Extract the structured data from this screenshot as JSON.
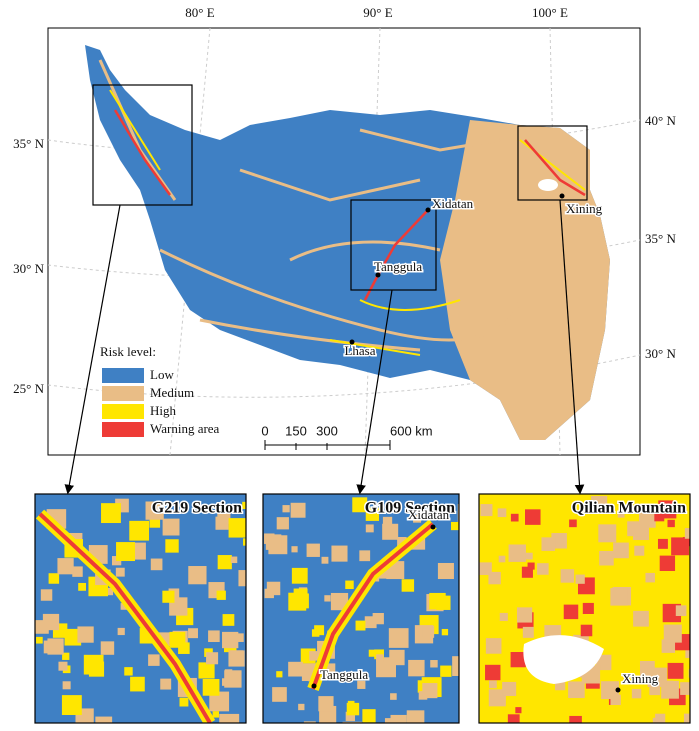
{
  "map": {
    "graticule": {
      "top": [
        "80° E",
        "90° E",
        "100° E"
      ],
      "left": [
        "35° N",
        "30° N",
        "25° N"
      ],
      "right": [
        "40° N",
        "35° N",
        "30° N"
      ]
    },
    "places": [
      "Xidatan",
      "Tanggula",
      "Lhasa",
      "Xining"
    ],
    "legend": {
      "title": "Risk level:",
      "items": [
        {
          "name": "Low",
          "color": "#3f80c4"
        },
        {
          "name": "Medium",
          "color": "#e9bd86"
        },
        {
          "name": "High",
          "color": "#ffe600"
        },
        {
          "name": "Warning area",
          "color": "#ee3b36"
        }
      ]
    },
    "scale_bar": [
      "0",
      "150",
      "300",
      "600 km"
    ]
  },
  "insets": [
    {
      "title": "G219 Section",
      "labels": []
    },
    {
      "title": "G109  Section",
      "labels": [
        "Xidatan",
        "Tanggula"
      ]
    },
    {
      "title": "Qilian Mountain",
      "labels": [
        "Xining"
      ]
    }
  ]
}
